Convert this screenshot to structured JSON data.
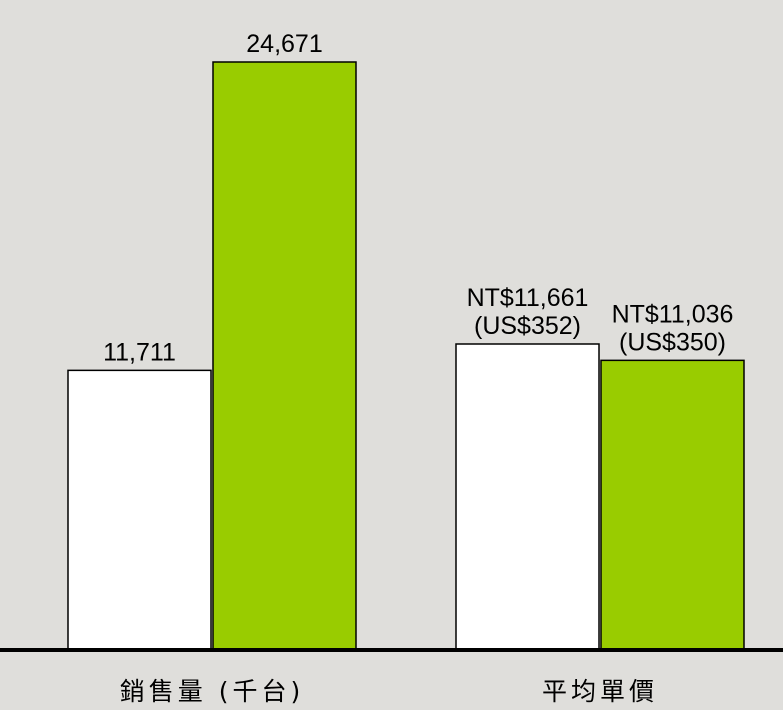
{
  "chart_data": [
    {
      "type": "bar",
      "categories": [
        "銷售量 (千台)"
      ],
      "series": [
        {
          "color": "#ffffff",
          "values": [
            11711
          ],
          "value_labels": [
            "11,711"
          ]
        },
        {
          "color": "#99cc00",
          "values": [
            24671
          ],
          "value_labels": [
            "24,671"
          ]
        }
      ]
    },
    {
      "type": "bar",
      "categories": [
        "平均單價"
      ],
      "series": [
        {
          "color": "#ffffff",
          "values": [
            11661
          ],
          "value_labels": [
            "NT$11,661\n(US$352)"
          ]
        },
        {
          "color": "#99cc00",
          "values": [
            11036
          ],
          "value_labels": [
            "NT$11,036\n(US$350)"
          ]
        }
      ]
    }
  ]
}
